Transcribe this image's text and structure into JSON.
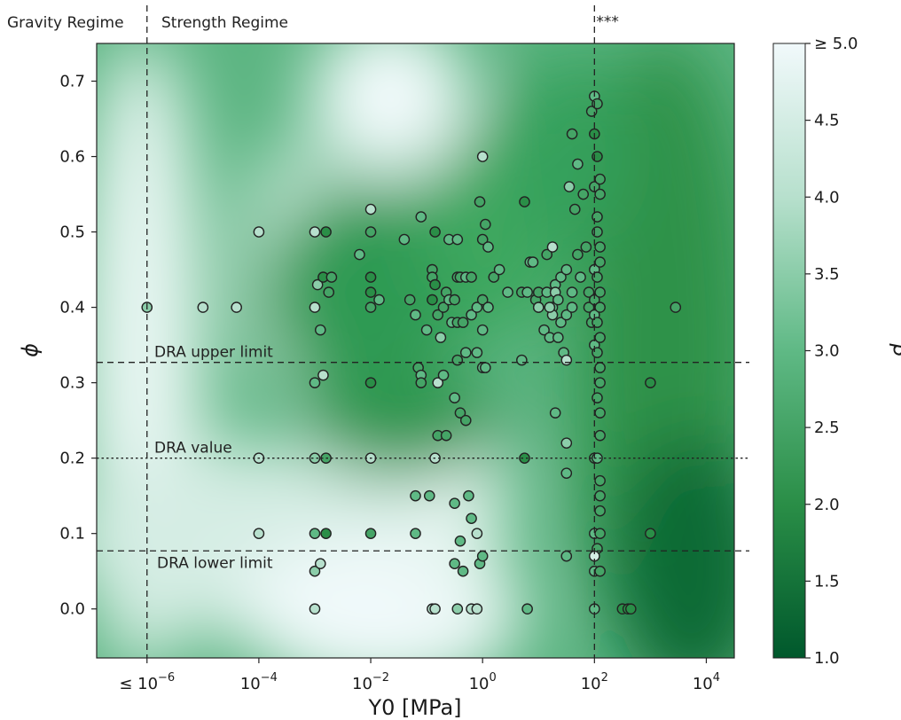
{
  "chart_data": {
    "type": "scatter",
    "xlabel": "Y0  [MPa]",
    "ylabel": "ϕ",
    "colorbar_label": "β",
    "x_scale": "log",
    "xlim": [
      -6.9,
      4.5
    ],
    "ylim": [
      -0.065,
      0.75
    ],
    "x_ticks": [
      {
        "v": -6,
        "base": "≤ 10",
        "exp": "−6"
      },
      {
        "v": -4,
        "base": "10",
        "exp": "−4"
      },
      {
        "v": -2,
        "base": "10",
        "exp": "−2"
      },
      {
        "v": 0,
        "base": "10",
        "exp": "0"
      },
      {
        "v": 2,
        "base": "10",
        "exp": "2"
      },
      {
        "v": 4,
        "base": "10",
        "exp": "4"
      }
    ],
    "y_ticks": [
      "0.0",
      "0.1",
      "0.2",
      "0.3",
      "0.4",
      "0.5",
      "0.6",
      "0.7"
    ],
    "colorbar": {
      "range": [
        1.0,
        5.0
      ],
      "ticks": [
        "1.0",
        "1.5",
        "2.0",
        "2.5",
        "3.0",
        "3.5",
        "4.0",
        "4.5",
        "≥ 5.0"
      ],
      "colors": [
        "#00582c",
        "#2a8e47",
        "#5fb985",
        "#b7e0cd",
        "#f1f9fb"
      ]
    },
    "regime_labels": [
      "Gravity Regime",
      "Strength Regime"
    ],
    "lines": [
      {
        "name": "DRA upper limit",
        "y": 0.327,
        "style": "dashed"
      },
      {
        "name": "DRA value",
        "y": 0.2,
        "style": "dotted"
      },
      {
        "name": "DRA lower limit",
        "y": 0.077,
        "style": "dashed"
      }
    ],
    "vlines": [
      {
        "x": -6,
        "label": ""
      },
      {
        "x": 2,
        "label": "***"
      }
    ],
    "points": [
      [
        -6,
        0.4,
        3.5
      ],
      [
        -5,
        0.4,
        4
      ],
      [
        -4.4,
        0.4,
        4
      ],
      [
        -4,
        0.5,
        4
      ],
      [
        -4,
        0.2,
        4
      ],
      [
        -4,
        0.1,
        4
      ],
      [
        -3,
        0.5,
        4
      ],
      [
        -3,
        0.4,
        4
      ],
      [
        -3,
        0.3,
        3
      ],
      [
        -3,
        0.2,
        3.5
      ],
      [
        -3,
        0.1,
        3
      ],
      [
        -3,
        0.05,
        3.5
      ],
      [
        -3,
        0,
        4
      ],
      [
        -2.95,
        0.43,
        3.5
      ],
      [
        -2.9,
        0.37,
        3
      ],
      [
        -2.9,
        0.06,
        4
      ],
      [
        -2.85,
        0.44,
        2
      ],
      [
        -2.85,
        0.31,
        4
      ],
      [
        -2.8,
        0.5,
        2
      ],
      [
        -2.8,
        0.2,
        2.5
      ],
      [
        -2.8,
        0.1,
        2
      ],
      [
        -2.75,
        0.42,
        2.5
      ],
      [
        -2.7,
        0.44,
        2.5
      ],
      [
        -2.2,
        0.47,
        3
      ],
      [
        -2,
        0.53,
        4
      ],
      [
        -2,
        0.5,
        2.5
      ],
      [
        -2,
        0.44,
        2
      ],
      [
        -2,
        0.42,
        2
      ],
      [
        -2,
        0.4,
        2.5
      ],
      [
        -2,
        0.3,
        2
      ],
      [
        -2,
        0.2,
        4
      ],
      [
        -2,
        0.1,
        2.5
      ],
      [
        -1.85,
        0.41,
        3
      ],
      [
        -1.4,
        0.49,
        3
      ],
      [
        -1.3,
        0.41,
        2.5
      ],
      [
        -1.2,
        0.39,
        3
      ],
      [
        -1.2,
        0.15,
        3
      ],
      [
        -1.2,
        0.1,
        3
      ],
      [
        -1.15,
        0.32,
        2.5
      ],
      [
        -1.1,
        0.52,
        3
      ],
      [
        -1.1,
        0.31,
        3
      ],
      [
        -1.1,
        0.3,
        2.5
      ],
      [
        -1,
        0.37,
        3
      ],
      [
        -0.95,
        0.15,
        3
      ],
      [
        -0.9,
        0.45,
        2.5
      ],
      [
        -0.9,
        0.41,
        2
      ],
      [
        -0.9,
        0.44,
        2.5
      ],
      [
        -0.85,
        0.43,
        2
      ],
      [
        -0.85,
        0.5,
        2
      ],
      [
        -0.85,
        0.2,
        4
      ],
      [
        -0.8,
        0.39,
        2.5
      ],
      [
        -0.8,
        0.3,
        4
      ],
      [
        -0.8,
        0.23,
        2.5
      ],
      [
        -0.75,
        0.36,
        3.5
      ],
      [
        -0.7,
        0.4,
        2.5
      ],
      [
        -0.7,
        0.31,
        3
      ],
      [
        -0.65,
        0.42,
        2.5
      ],
      [
        -0.65,
        0.23,
        2.5
      ],
      [
        -0.6,
        0.41,
        3
      ],
      [
        -0.6,
        0.49,
        3
      ],
      [
        -0.55,
        0.38,
        3
      ],
      [
        -0.5,
        0.41,
        2.5
      ],
      [
        -0.5,
        0.28,
        3
      ],
      [
        -0.5,
        0.14,
        3
      ],
      [
        -0.5,
        0.06,
        3
      ],
      [
        -0.45,
        0.49,
        3
      ],
      [
        -0.45,
        0.44,
        2.5
      ],
      [
        -0.45,
        0.38,
        2.5
      ],
      [
        -0.45,
        0.33,
        2.5
      ],
      [
        -0.4,
        0.44,
        2.5
      ],
      [
        -0.4,
        0.26,
        2.5
      ],
      [
        -0.4,
        0.09,
        3
      ],
      [
        -0.35,
        0.38,
        2.5
      ],
      [
        -0.35,
        0.05,
        3
      ],
      [
        -0.3,
        0.44,
        3
      ],
      [
        -0.3,
        0.34,
        3
      ],
      [
        -0.3,
        0.25,
        2.5
      ],
      [
        -0.25,
        0.15,
        3
      ],
      [
        -0.2,
        0.39,
        3
      ],
      [
        -0.2,
        0.44,
        2.5
      ],
      [
        -0.2,
        0.12,
        3
      ],
      [
        -0.1,
        0.4,
        3
      ],
      [
        -0.1,
        0.34,
        3
      ],
      [
        -0.1,
        0.1,
        4
      ],
      [
        -0.05,
        0.54,
        2.5
      ],
      [
        -0.05,
        0.06,
        3
      ],
      [
        0,
        0.49,
        2.5
      ],
      [
        0,
        0.41,
        2.5
      ],
      [
        0,
        0.37,
        3
      ],
      [
        0,
        0.32,
        3
      ],
      [
        0,
        0.07,
        3
      ],
      [
        0,
        0.6,
        4
      ],
      [
        0.05,
        0.51,
        2.5
      ],
      [
        0.05,
        0.32,
        3
      ],
      [
        0.1,
        0.48,
        3
      ],
      [
        0.1,
        0.4,
        3
      ],
      [
        0.2,
        0.44,
        2.5
      ],
      [
        0.3,
        0.45,
        3
      ],
      [
        0.45,
        0.42,
        3
      ],
      [
        0.7,
        0.33,
        3
      ],
      [
        0.7,
        0.42,
        2.5
      ],
      [
        0.75,
        0.54,
        2
      ],
      [
        0.75,
        0.2,
        2
      ],
      [
        0.8,
        0.42,
        3
      ],
      [
        0.8,
        0.0,
        3
      ],
      [
        0.85,
        0.46,
        3
      ],
      [
        0.9,
        0.46,
        3
      ],
      [
        0.95,
        0.41,
        2.5
      ],
      [
        1.0,
        0.4,
        3
      ],
      [
        1.0,
        0.42,
        2.5
      ],
      [
        1.1,
        0.37,
        3
      ],
      [
        1.15,
        0.47,
        2.5
      ],
      [
        1.15,
        0.42,
        3
      ],
      [
        1.2,
        0.36,
        3
      ],
      [
        1.25,
        0.48,
        4
      ],
      [
        1.25,
        0.4,
        3
      ],
      [
        1.25,
        0.39,
        3.5
      ],
      [
        1.3,
        0.43,
        3
      ],
      [
        1.3,
        0.26,
        3
      ],
      [
        1.3,
        0.42,
        3.5
      ],
      [
        1.35,
        0.41,
        3
      ],
      [
        1.35,
        0.36,
        3
      ],
      [
        1.4,
        0.44,
        3
      ],
      [
        1.4,
        0.38,
        3
      ],
      [
        1.45,
        0.34,
        3
      ],
      [
        1.5,
        0.45,
        3
      ],
      [
        1.5,
        0.39,
        3
      ],
      [
        1.5,
        0.33,
        4
      ],
      [
        1.5,
        0.22,
        3.5
      ],
      [
        1.5,
        0.18,
        3
      ],
      [
        1.5,
        0.07,
        3
      ],
      [
        1.55,
        0.56,
        3.5
      ],
      [
        1.6,
        0.42,
        3
      ],
      [
        1.6,
        0.63,
        2.5
      ],
      [
        1.6,
        0.4,
        3
      ],
      [
        1.65,
        0.53,
        2.5
      ],
      [
        1.7,
        0.59,
        3
      ],
      [
        1.7,
        0.47,
        2.5
      ],
      [
        1.75,
        0.44,
        3
      ],
      [
        1.8,
        0.55,
        2.5
      ],
      [
        1.85,
        0.48,
        2.5
      ],
      [
        1.9,
        0.42,
        2.5
      ],
      [
        1.9,
        0.4,
        2.5
      ],
      [
        1.95,
        0.38,
        2.5
      ],
      [
        2.0,
        0.56,
        2.5
      ],
      [
        2.0,
        0.45,
        3
      ],
      [
        2.0,
        0.41,
        2.5
      ],
      [
        2.0,
        0.39,
        3
      ],
      [
        2.0,
        0.35,
        3
      ],
      [
        2.0,
        0.2,
        2.5
      ],
      [
        2.0,
        0.1,
        3
      ],
      [
        2.0,
        0.05,
        3
      ],
      [
        2.0,
        0.0,
        3
      ],
      [
        1.0,
        0.4,
        3.5
      ],
      [
        1.2,
        0.4,
        3.5
      ],
      [
        1.95,
        0.66,
        2.5
      ],
      [
        2.0,
        0.68,
        3
      ],
      [
        2.05,
        0.67,
        2.5
      ],
      [
        2.0,
        0.63,
        2
      ],
      [
        2.05,
        0.6,
        2
      ],
      [
        2.1,
        0.57,
        2.5
      ],
      [
        2.1,
        0.55,
        2.5
      ],
      [
        2.05,
        0.52,
        2.5
      ],
      [
        2.05,
        0.5,
        2.5
      ],
      [
        2.1,
        0.48,
        2.5
      ],
      [
        2.1,
        0.46,
        2.5
      ],
      [
        2.05,
        0.44,
        2.5
      ],
      [
        2.1,
        0.42,
        2.5
      ],
      [
        2.1,
        0.4,
        2.5
      ],
      [
        2.05,
        0.38,
        2.5
      ],
      [
        2.1,
        0.36,
        2.5
      ],
      [
        2.05,
        0.34,
        2.5
      ],
      [
        2.1,
        0.32,
        2.5
      ],
      [
        2.1,
        0.3,
        2.5
      ],
      [
        2.05,
        0.28,
        2.5
      ],
      [
        2.1,
        0.26,
        2.5
      ],
      [
        2.1,
        0.23,
        2.5
      ],
      [
        2.05,
        0.2,
        3
      ],
      [
        2.1,
        0.17,
        2.5
      ],
      [
        2.1,
        0.15,
        2.5
      ],
      [
        2.1,
        0.13,
        2.5
      ],
      [
        2.1,
        0.1,
        2.5
      ],
      [
        2.05,
        0.08,
        2.5
      ],
      [
        2.0,
        0.07,
        4.5
      ],
      [
        2.1,
        0.05,
        2.5
      ],
      [
        3.45,
        0.4,
        2.5
      ],
      [
        3.0,
        0.3,
        2
      ],
      [
        3.0,
        0.1,
        2
      ],
      [
        2.5,
        0.0,
        2
      ],
      [
        2.6,
        0.0,
        2
      ],
      [
        2.65,
        0.0,
        2
      ],
      [
        -0.45,
        0.0,
        3.5
      ],
      [
        -0.2,
        0.0,
        4
      ],
      [
        -0.1,
        0.0,
        4
      ],
      [
        -0.9,
        0.0,
        4
      ],
      [
        -0.85,
        0.0,
        4
      ]
    ]
  }
}
